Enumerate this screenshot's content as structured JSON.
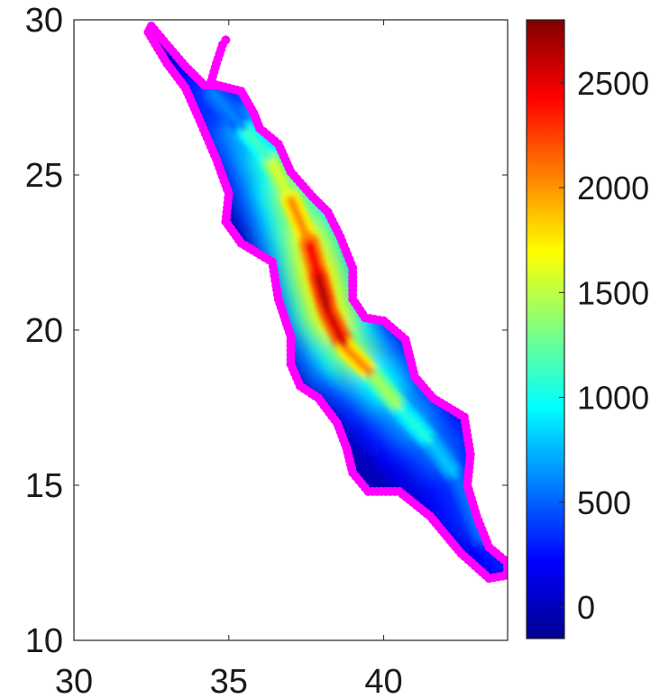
{
  "chart_data": {
    "type": "heatmap",
    "title": "",
    "xlabel": "",
    "ylabel": "",
    "xlim": [
      30,
      44
    ],
    "ylim": [
      10,
      30
    ],
    "x_ticks": [
      30,
      35,
      40
    ],
    "y_ticks": [
      10,
      15,
      20,
      25,
      30
    ],
    "x_tick_labels": [
      "30",
      "35",
      "40"
    ],
    "y_tick_labels": [
      "10",
      "15",
      "20",
      "25",
      "30"
    ],
    "grid": false,
    "colormap": "jet",
    "colorbar": {
      "position": "right",
      "range": [
        -150,
        2800
      ],
      "ticks": [
        0,
        500,
        1000,
        1500,
        2000,
        2500
      ],
      "tick_labels": [
        "0",
        "500",
        "1000",
        "1500",
        "2000",
        "2500"
      ]
    },
    "boundary_marker_color": "#ff00ff",
    "basin_outline": [
      [
        32.5,
        29.8
      ],
      [
        33.0,
        29.2
      ],
      [
        33.6,
        28.5
      ],
      [
        34.2,
        27.9
      ],
      [
        34.6,
        27.9
      ],
      [
        35.4,
        27.7
      ],
      [
        35.8,
        27.0
      ],
      [
        36.0,
        26.5
      ],
      [
        36.6,
        26.0
      ],
      [
        37.0,
        25.1
      ],
      [
        37.7,
        24.3
      ],
      [
        38.2,
        23.8
      ],
      [
        38.6,
        23.0
      ],
      [
        39.0,
        22.0
      ],
      [
        39.0,
        21.0
      ],
      [
        39.4,
        20.4
      ],
      [
        40.0,
        20.3
      ],
      [
        40.7,
        19.7
      ],
      [
        41.0,
        18.5
      ],
      [
        41.6,
        17.8
      ],
      [
        42.6,
        17.2
      ],
      [
        42.8,
        16.0
      ],
      [
        42.7,
        15.0
      ],
      [
        43.0,
        14.0
      ],
      [
        43.4,
        13.0
      ],
      [
        44.0,
        12.5
      ],
      [
        44.0,
        12.1
      ],
      [
        43.4,
        12.0
      ],
      [
        42.5,
        12.8
      ],
      [
        41.5,
        14.0
      ],
      [
        40.5,
        14.8
      ],
      [
        39.5,
        14.8
      ],
      [
        39.0,
        15.4
      ],
      [
        38.8,
        16.2
      ],
      [
        38.5,
        17.0
      ],
      [
        37.9,
        17.8
      ],
      [
        37.3,
        18.2
      ],
      [
        37.0,
        18.9
      ],
      [
        37.0,
        19.8
      ],
      [
        36.6,
        21.0
      ],
      [
        36.4,
        22.2
      ],
      [
        35.4,
        22.8
      ],
      [
        34.9,
        23.5
      ],
      [
        35.0,
        24.4
      ],
      [
        34.6,
        25.5
      ],
      [
        34.0,
        26.9
      ],
      [
        33.6,
        27.8
      ],
      [
        33.0,
        28.6
      ],
      [
        32.4,
        29.6
      ]
    ],
    "gulf_of_aqaba": [
      [
        34.4,
        27.9
      ],
      [
        34.6,
        28.6
      ],
      [
        34.8,
        29.2
      ],
      [
        35.0,
        29.5
      ]
    ],
    "axis_line": [
      [
        34.5,
        27.6
      ],
      [
        35.6,
        26.4
      ],
      [
        36.4,
        25.4
      ],
      [
        37.0,
        24.2
      ],
      [
        37.6,
        22.8
      ],
      [
        37.9,
        21.7
      ],
      [
        38.2,
        20.6
      ],
      [
        38.8,
        19.4
      ],
      [
        39.7,
        18.5
      ],
      [
        40.6,
        17.4
      ],
      [
        41.6,
        16.3
      ],
      [
        42.4,
        15.2
      ],
      [
        43.3,
        13.0
      ],
      [
        43.8,
        12.4
      ]
    ],
    "depth_profile": [
      300,
      900,
      1400,
      1800,
      2300,
      2600,
      2700,
      2400,
      1700,
      1200,
      900,
      700,
      400,
      200
    ]
  }
}
